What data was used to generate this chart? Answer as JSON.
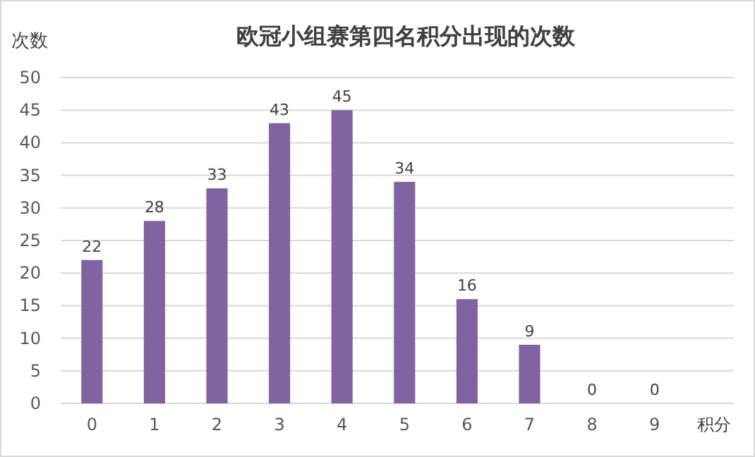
{
  "chart_data": {
    "type": "bar",
    "title": "欧冠小组赛第四名积分出现的次数",
    "xlabel": "积分",
    "ylabel": "次数",
    "categories": [
      "0",
      "1",
      "2",
      "3",
      "4",
      "5",
      "6",
      "7",
      "8",
      "9"
    ],
    "values": [
      22,
      28,
      33,
      43,
      45,
      34,
      16,
      9,
      0,
      0
    ],
    "color": "#8064a2",
    "ylim": [
      0,
      50
    ],
    "yticks": [
      0,
      5,
      10,
      15,
      20,
      25,
      30,
      35,
      40,
      45,
      50
    ],
    "grid": "y",
    "data_labels": true
  }
}
